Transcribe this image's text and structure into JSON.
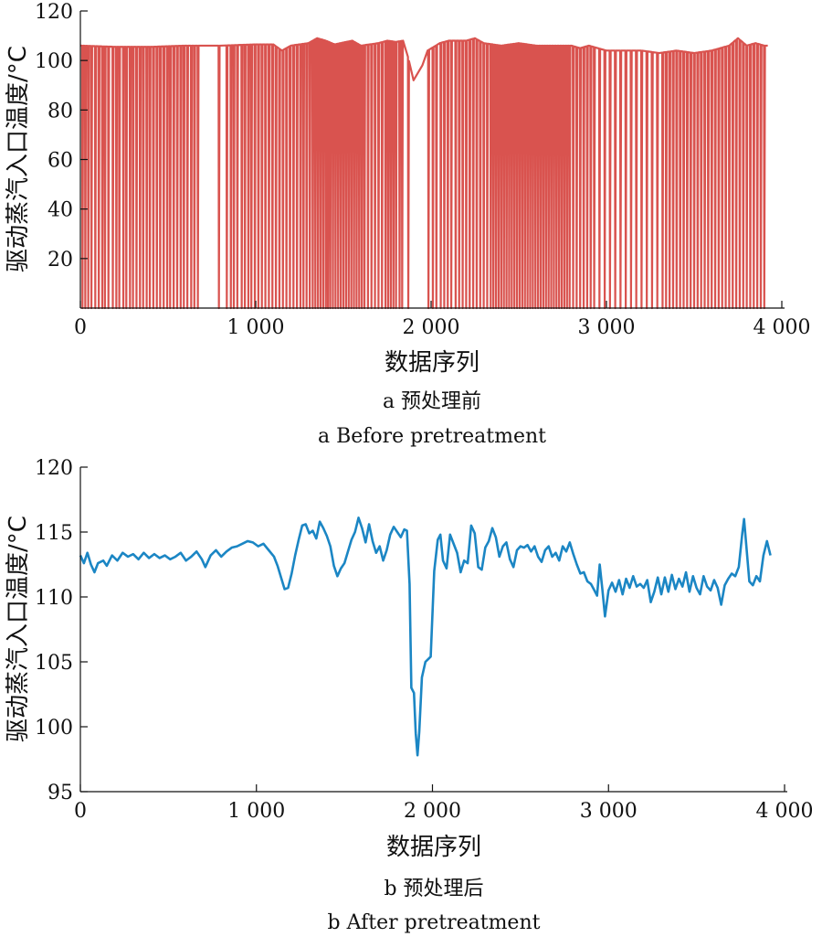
{
  "chart_data": [
    {
      "type": "line",
      "id": "a",
      "color": "#d9534f",
      "xlabel": "数据序列",
      "ylabel": "驱动蒸汽入口温度/°C",
      "xlim": [
        0,
        4000
      ],
      "ylim": [
        0,
        120
      ],
      "xticks": [
        0,
        1000,
        2000,
        3000,
        4000
      ],
      "xtick_labels": [
        "0",
        "1 000",
        "2 000",
        "3 000",
        "4 000"
      ],
      "yticks": [
        20,
        40,
        60,
        80,
        100,
        120
      ],
      "ytick_labels": [
        "20",
        "40",
        "60",
        "80",
        "100",
        "120"
      ],
      "caption_cn": "a 预处理前",
      "caption_en": "a Before pretreatment",
      "baseline_points": [
        [
          0,
          106
        ],
        [
          200,
          105.5
        ],
        [
          400,
          105.5
        ],
        [
          600,
          106
        ],
        [
          800,
          106
        ],
        [
          1000,
          106.5
        ],
        [
          1100,
          106.5
        ],
        [
          1150,
          104
        ],
        [
          1200,
          106
        ],
        [
          1300,
          107
        ],
        [
          1350,
          109
        ],
        [
          1400,
          108
        ],
        [
          1450,
          106.5
        ],
        [
          1550,
          108
        ],
        [
          1600,
          106
        ],
        [
          1700,
          107
        ],
        [
          1750,
          108
        ],
        [
          1800,
          107.5
        ],
        [
          1840,
          108
        ],
        [
          1870,
          101
        ],
        [
          1900,
          92
        ],
        [
          1950,
          98
        ],
        [
          1980,
          104
        ],
        [
          2050,
          107
        ],
        [
          2100,
          108
        ],
        [
          2200,
          108
        ],
        [
          2250,
          109
        ],
        [
          2300,
          107
        ],
        [
          2400,
          106
        ],
        [
          2500,
          107
        ],
        [
          2600,
          106
        ],
        [
          2700,
          106
        ],
        [
          2800,
          106
        ],
        [
          2850,
          105
        ],
        [
          2900,
          106
        ],
        [
          3000,
          104
        ],
        [
          3100,
          104
        ],
        [
          3200,
          104
        ],
        [
          3300,
          103
        ],
        [
          3400,
          104
        ],
        [
          3500,
          103
        ],
        [
          3600,
          104
        ],
        [
          3700,
          106
        ],
        [
          3750,
          109
        ],
        [
          3800,
          106
        ],
        [
          3850,
          107
        ],
        [
          3900,
          106
        ],
        [
          3920,
          106
        ]
      ],
      "dropout_x": [
        12,
        28,
        45,
        63,
        85,
        105,
        125,
        140,
        160,
        185,
        205,
        222,
        245,
        262,
        283,
        300,
        320,
        340,
        358,
        378,
        396,
        416,
        436,
        455,
        475,
        495,
        512,
        532,
        552,
        572,
        590,
        610,
        632,
        650,
        670,
        790,
        835,
        858,
        875,
        895,
        920,
        938,
        958,
        975,
        995,
        1015,
        1035,
        1055,
        1075,
        1095,
        1115,
        1135,
        1155,
        1175,
        1195,
        1215,
        1235,
        1255,
        1272,
        1290,
        1308,
        1325,
        1340,
        1355,
        1370,
        1385,
        1400,
        1412,
        1425,
        1440,
        1455,
        1470,
        1485,
        1500,
        1515,
        1530,
        1545,
        1560,
        1575,
        1590,
        1605,
        1620,
        1640,
        1660,
        1680,
        1700,
        1720,
        1740,
        1755,
        1770,
        1785,
        1800,
        1820,
        1835,
        1870,
        1985,
        2010,
        2030,
        2055,
        2075,
        2095,
        2115,
        2140,
        2160,
        2180,
        2200,
        2220,
        2240,
        2260,
        2280,
        2300,
        2320,
        2340,
        2355,
        2370,
        2385,
        2400,
        2415,
        2430,
        2445,
        2460,
        2475,
        2490,
        2505,
        2520,
        2535,
        2550,
        2565,
        2580,
        2595,
        2610,
        2625,
        2640,
        2655,
        2670,
        2685,
        2700,
        2715,
        2730,
        2745,
        2760,
        2775,
        2790,
        2810,
        2830,
        2850,
        2870,
        2890,
        2910,
        2930,
        2960,
        2990,
        3020,
        3050,
        3080,
        3110,
        3140,
        3170,
        3200,
        3230,
        3260,
        3290,
        3320,
        3340,
        3360,
        3380,
        3400,
        3420,
        3440,
        3460,
        3480,
        3500,
        3520,
        3540,
        3560,
        3580,
        3600,
        3620,
        3640,
        3660,
        3680,
        3700,
        3720,
        3740,
        3760,
        3780,
        3800,
        3820,
        3840,
        3860,
        3880,
        3900
      ]
    },
    {
      "type": "line",
      "id": "b",
      "color": "#1b86c4",
      "xlabel": "数据序列",
      "ylabel": "驱动蒸汽入口温度/°C",
      "xlim": [
        0,
        4000
      ],
      "ylim": [
        95,
        120
      ],
      "xticks": [
        0,
        1000,
        2000,
        3000,
        4000
      ],
      "xtick_labels": [
        "0",
        "1 000",
        "2 000",
        "3 000",
        "4 000"
      ],
      "yticks": [
        95,
        100,
        105,
        110,
        115,
        120
      ],
      "ytick_labels": [
        "95",
        "100",
        "105",
        "110",
        "115",
        "120"
      ],
      "caption_cn": "b 预处理后",
      "caption_en": "b After pretreatment",
      "points": [
        [
          0,
          113.2
        ],
        [
          20,
          112.6
        ],
        [
          40,
          113.4
        ],
        [
          60,
          112.5
        ],
        [
          80,
          111.9
        ],
        [
          100,
          112.6
        ],
        [
          130,
          112.8
        ],
        [
          150,
          112.4
        ],
        [
          180,
          113.2
        ],
        [
          210,
          112.8
        ],
        [
          240,
          113.4
        ],
        [
          270,
          113.1
        ],
        [
          300,
          113.3
        ],
        [
          330,
          112.9
        ],
        [
          360,
          113.4
        ],
        [
          390,
          113.0
        ],
        [
          420,
          113.3
        ],
        [
          450,
          113.0
        ],
        [
          480,
          113.2
        ],
        [
          510,
          112.9
        ],
        [
          540,
          113.1
        ],
        [
          570,
          113.4
        ],
        [
          600,
          112.8
        ],
        [
          630,
          113.1
        ],
        [
          660,
          113.5
        ],
        [
          690,
          112.9
        ],
        [
          710,
          112.3
        ],
        [
          740,
          113.2
        ],
        [
          770,
          113.6
        ],
        [
          800,
          113.1
        ],
        [
          830,
          113.5
        ],
        [
          860,
          113.8
        ],
        [
          890,
          113.9
        ],
        [
          920,
          114.1
        ],
        [
          950,
          114.3
        ],
        [
          980,
          114.2
        ],
        [
          1010,
          113.9
        ],
        [
          1040,
          114.1
        ],
        [
          1070,
          113.6
        ],
        [
          1100,
          113.1
        ],
        [
          1120,
          112.4
        ],
        [
          1140,
          111.5
        ],
        [
          1160,
          110.6
        ],
        [
          1180,
          110.7
        ],
        [
          1200,
          111.8
        ],
        [
          1220,
          113.2
        ],
        [
          1240,
          114.4
        ],
        [
          1260,
          115.5
        ],
        [
          1280,
          115.6
        ],
        [
          1300,
          114.9
        ],
        [
          1320,
          115.1
        ],
        [
          1340,
          114.5
        ],
        [
          1360,
          115.8
        ],
        [
          1380,
          115.3
        ],
        [
          1400,
          114.7
        ],
        [
          1420,
          113.9
        ],
        [
          1440,
          112.4
        ],
        [
          1460,
          111.6
        ],
        [
          1480,
          112.2
        ],
        [
          1500,
          112.6
        ],
        [
          1520,
          113.5
        ],
        [
          1540,
          114.4
        ],
        [
          1560,
          115.0
        ],
        [
          1580,
          116.1
        ],
        [
          1600,
          115.3
        ],
        [
          1620,
          114.2
        ],
        [
          1640,
          115.6
        ],
        [
          1660,
          114.3
        ],
        [
          1680,
          113.4
        ],
        [
          1700,
          113.9
        ],
        [
          1720,
          112.8
        ],
        [
          1740,
          113.6
        ],
        [
          1760,
          114.8
        ],
        [
          1780,
          115.4
        ],
        [
          1800,
          115.0
        ],
        [
          1820,
          114.6
        ],
        [
          1840,
          115.2
        ],
        [
          1855,
          115.1
        ],
        [
          1870,
          111.0
        ],
        [
          1880,
          103.0
        ],
        [
          1895,
          102.6
        ],
        [
          1905,
          99.5
        ],
        [
          1915,
          97.8
        ],
        [
          1925,
          99.6
        ],
        [
          1940,
          103.8
        ],
        [
          1960,
          105.0
        ],
        [
          1975,
          105.2
        ],
        [
          1990,
          105.4
        ],
        [
          2010,
          112.0
        ],
        [
          2030,
          114.4
        ],
        [
          2045,
          114.8
        ],
        [
          2060,
          112.8
        ],
        [
          2080,
          112.2
        ],
        [
          2100,
          114.8
        ],
        [
          2120,
          114.1
        ],
        [
          2140,
          113.4
        ],
        [
          2160,
          111.9
        ],
        [
          2180,
          112.8
        ],
        [
          2200,
          112.6
        ],
        [
          2220,
          115.5
        ],
        [
          2240,
          114.9
        ],
        [
          2260,
          112.3
        ],
        [
          2280,
          112.1
        ],
        [
          2300,
          113.8
        ],
        [
          2320,
          114.3
        ],
        [
          2340,
          115.3
        ],
        [
          2360,
          114.6
        ],
        [
          2380,
          113.1
        ],
        [
          2400,
          113.9
        ],
        [
          2420,
          114.2
        ],
        [
          2440,
          112.9
        ],
        [
          2460,
          112.3
        ],
        [
          2480,
          113.6
        ],
        [
          2500,
          113.9
        ],
        [
          2520,
          113.8
        ],
        [
          2540,
          114.0
        ],
        [
          2560,
          113.5
        ],
        [
          2580,
          113.9
        ],
        [
          2600,
          113.1
        ],
        [
          2620,
          112.7
        ],
        [
          2640,
          113.6
        ],
        [
          2660,
          113.9
        ],
        [
          2680,
          113.1
        ],
        [
          2700,
          113.4
        ],
        [
          2720,
          112.8
        ],
        [
          2740,
          113.9
        ],
        [
          2760,
          113.5
        ],
        [
          2780,
          114.2
        ],
        [
          2800,
          113.3
        ],
        [
          2820,
          112.5
        ],
        [
          2840,
          111.8
        ],
        [
          2860,
          111.9
        ],
        [
          2880,
          111.2
        ],
        [
          2900,
          111.0
        ],
        [
          2920,
          110.5
        ],
        [
          2935,
          110.1
        ],
        [
          2950,
          112.5
        ],
        [
          2965,
          110.6
        ],
        [
          2980,
          108.5
        ],
        [
          3000,
          110.5
        ],
        [
          3020,
          111.1
        ],
        [
          3040,
          110.4
        ],
        [
          3060,
          111.3
        ],
        [
          3080,
          110.2
        ],
        [
          3100,
          111.4
        ],
        [
          3120,
          110.7
        ],
        [
          3140,
          111.6
        ],
        [
          3160,
          110.8
        ],
        [
          3180,
          111.0
        ],
        [
          3200,
          110.7
        ],
        [
          3220,
          111.3
        ],
        [
          3240,
          109.6
        ],
        [
          3260,
          110.4
        ],
        [
          3280,
          111.5
        ],
        [
          3300,
          110.2
        ],
        [
          3320,
          111.5
        ],
        [
          3340,
          110.4
        ],
        [
          3360,
          111.7
        ],
        [
          3380,
          110.6
        ],
        [
          3400,
          111.4
        ],
        [
          3420,
          110.8
        ],
        [
          3440,
          111.9
        ],
        [
          3460,
          110.4
        ],
        [
          3480,
          111.6
        ],
        [
          3500,
          110.7
        ],
        [
          3520,
          110.2
        ],
        [
          3540,
          111.6
        ],
        [
          3560,
          110.8
        ],
        [
          3580,
          110.5
        ],
        [
          3600,
          111.3
        ],
        [
          3620,
          110.7
        ],
        [
          3640,
          109.4
        ],
        [
          3660,
          110.9
        ],
        [
          3680,
          111.4
        ],
        [
          3700,
          111.8
        ],
        [
          3720,
          111.6
        ],
        [
          3740,
          112.3
        ],
        [
          3760,
          114.9
        ],
        [
          3770,
          116.0
        ],
        [
          3780,
          114.4
        ],
        [
          3800,
          111.2
        ],
        [
          3820,
          110.9
        ],
        [
          3840,
          111.6
        ],
        [
          3860,
          111.2
        ],
        [
          3880,
          113.2
        ],
        [
          3900,
          114.3
        ],
        [
          3920,
          113.2
        ]
      ]
    }
  ]
}
